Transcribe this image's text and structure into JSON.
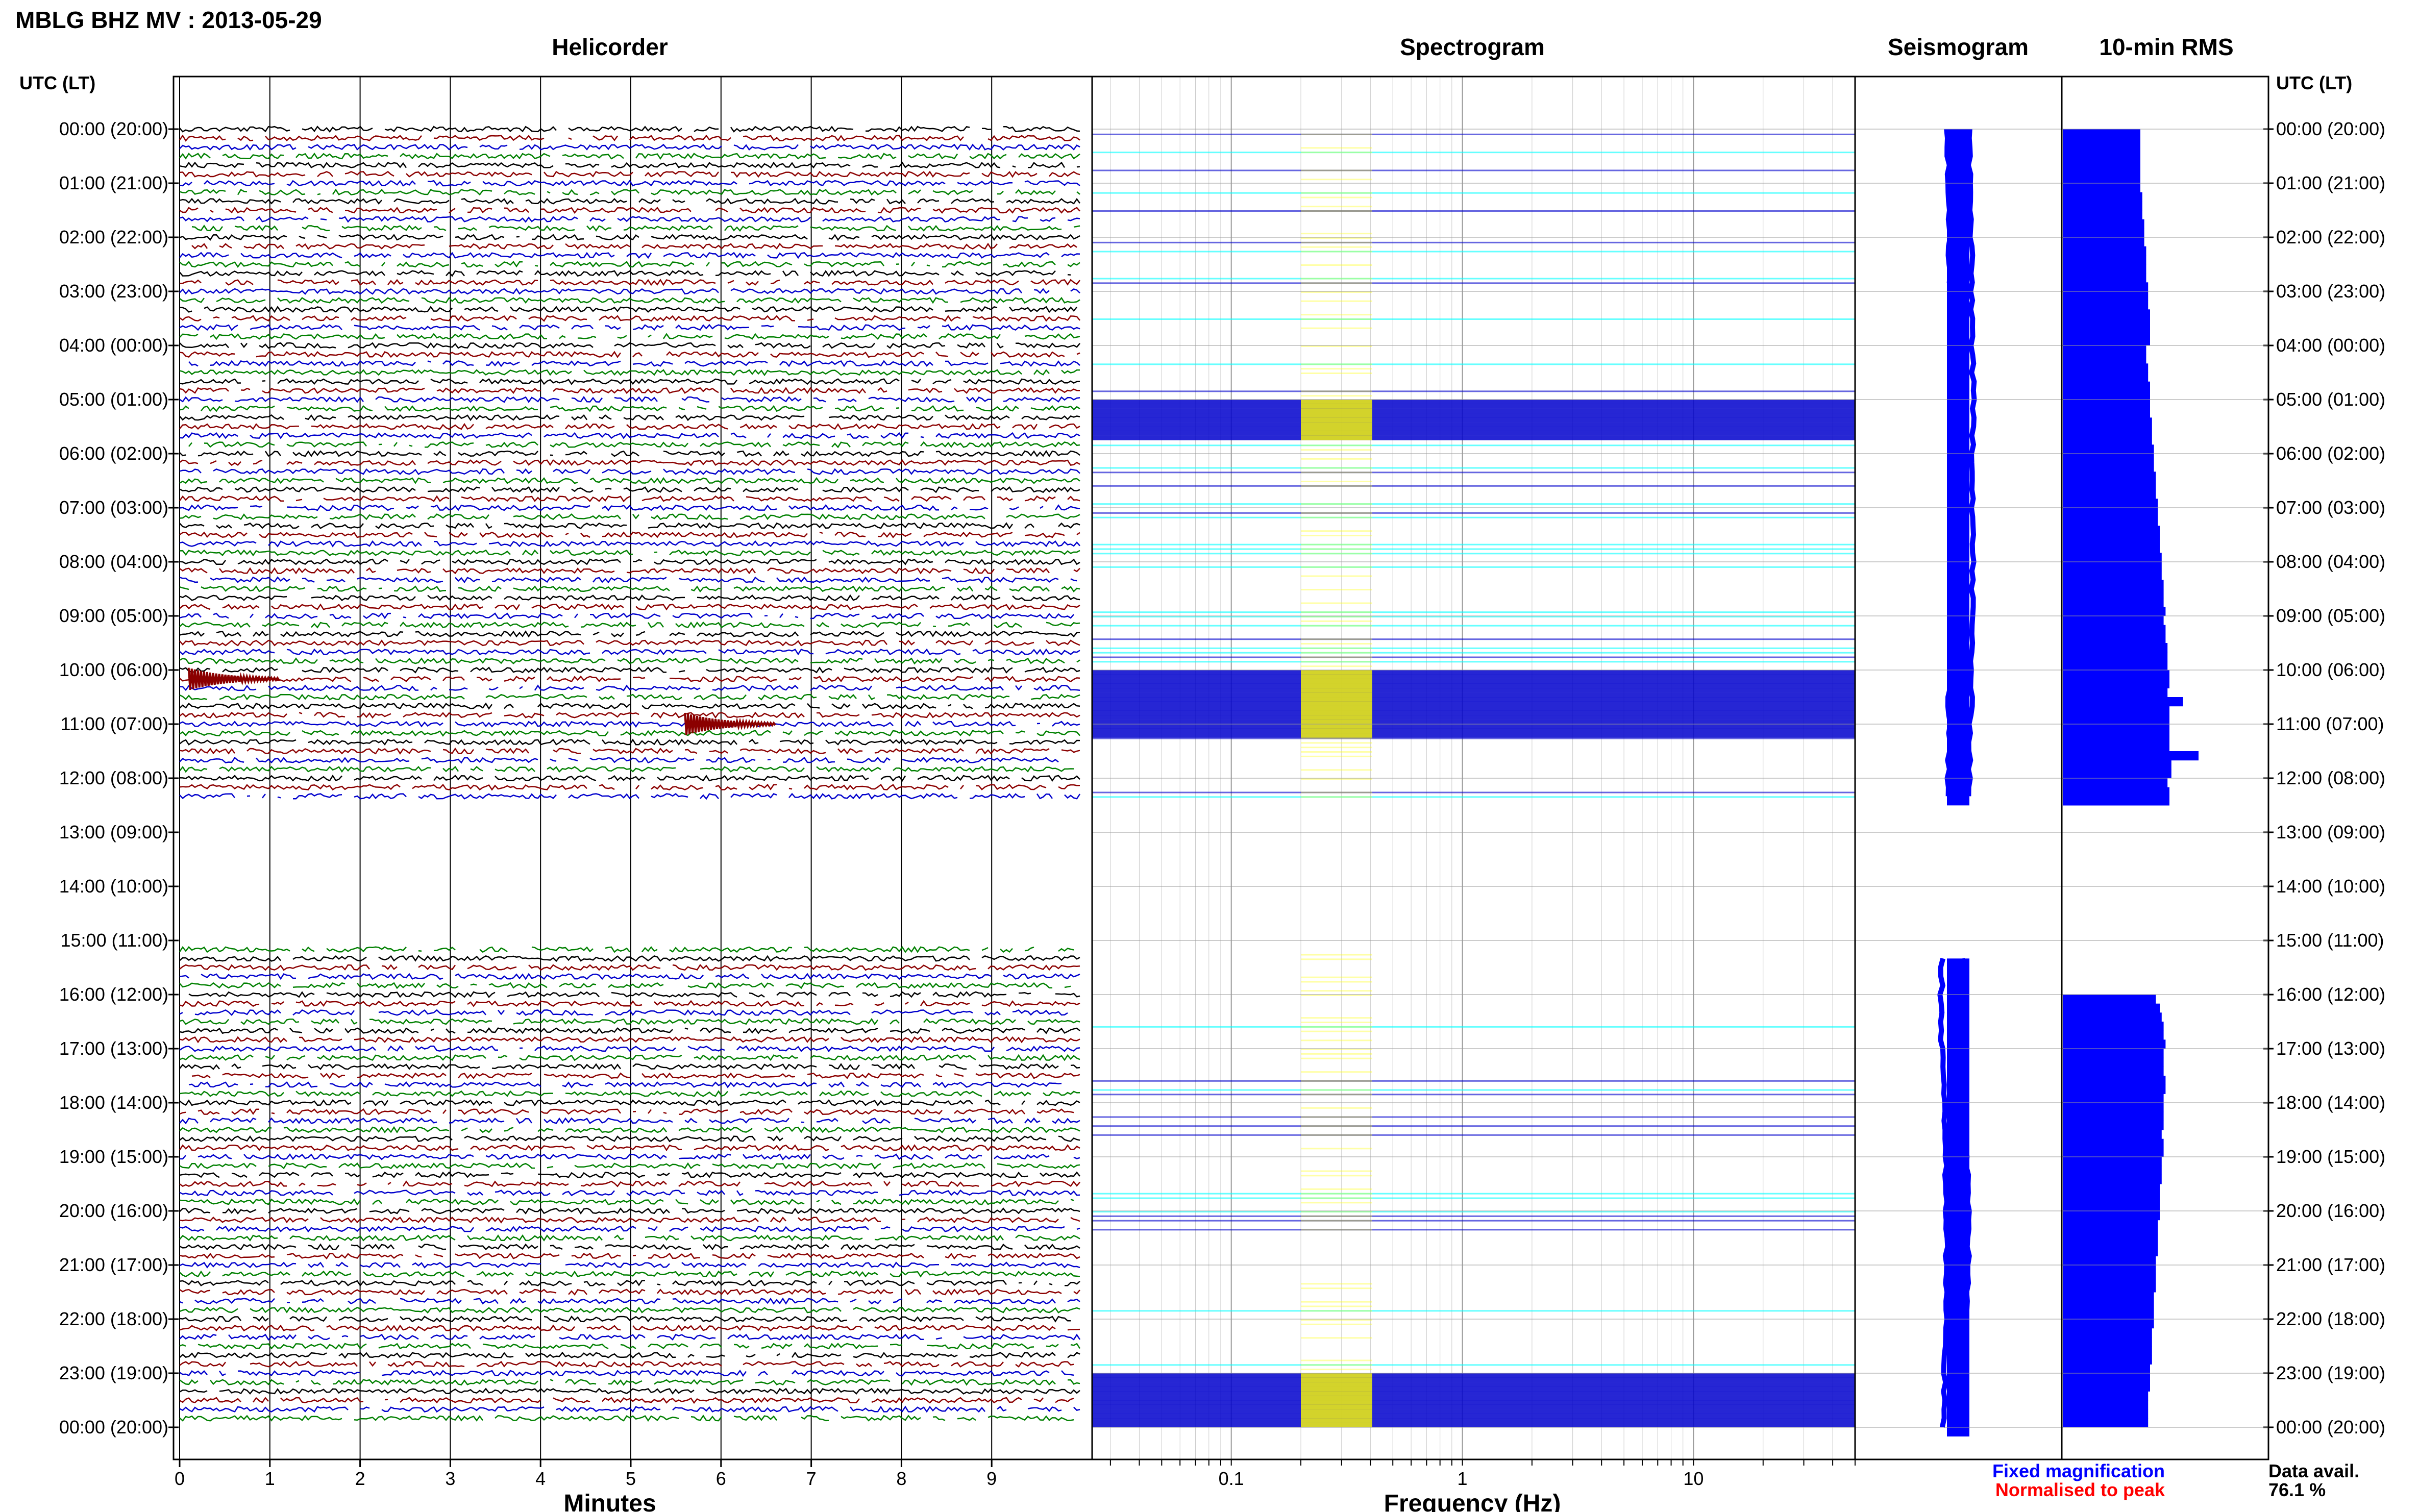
{
  "header": {
    "station_title": "MBLG BHZ MV : 2013-05-29",
    "utc_lt_label": "UTC (LT)"
  },
  "panels": {
    "helicorder": "Helicorder",
    "spectrogram": "Spectrogram",
    "seismogram": "Seismogram",
    "rms": "10-min RMS"
  },
  "time_axis": {
    "labels": [
      "00:00 (20:00)",
      "01:00 (21:00)",
      "02:00 (22:00)",
      "03:00 (23:00)",
      "04:00 (00:00)",
      "05:00 (01:00)",
      "06:00 (02:00)",
      "07:00 (03:00)",
      "08:00 (04:00)",
      "09:00 (05:00)",
      "10:00 (06:00)",
      "11:00 (07:00)",
      "12:00 (08:00)",
      "13:00 (09:00)",
      "14:00 (10:00)",
      "15:00 (11:00)",
      "16:00 (12:00)",
      "17:00 (13:00)",
      "18:00 (14:00)",
      "19:00 (15:00)",
      "20:00 (16:00)",
      "21:00 (17:00)",
      "22:00 (18:00)",
      "23:00 (19:00)",
      "00:00 (20:00)"
    ]
  },
  "footer": {
    "minutes_label": "Minutes",
    "frequency_label": "Frequency (Hz)",
    "fixed_magnification": "Fixed magnification",
    "normalised_to_peak": "Normalised to peak",
    "data_avail_label": "Data avail.",
    "data_avail_value": "76.1 %"
  },
  "colors": {
    "trace_black": "#000000",
    "trace_red": "#8b0000",
    "trace_blue": "#0000cc",
    "trace_green": "#008000",
    "seismogram": "#0000ff",
    "rms": "#0000ff",
    "fixed_magnification": "#0000ff",
    "normalised_to_peak": "#ff0000",
    "spectrogram_band": "#0000cc",
    "spectrogram_low": "#00ffff",
    "spectrogram_peak": "#ffff00"
  },
  "chart_data": [
    {
      "type": "line",
      "panel": "Helicorder",
      "xlabel": "Minutes",
      "xticks": [
        "0",
        "1",
        "2",
        "3",
        "4",
        "5",
        "6",
        "7",
        "8",
        "9"
      ],
      "xlim": [
        0,
        10
      ],
      "trace_interval_min": 10,
      "trace_colors_cycle": [
        "black",
        "red",
        "blue",
        "green"
      ],
      "data_gap_utc": [
        "12:30",
        "15:10"
      ],
      "events": [
        {
          "time_utc": "10:10",
          "minute": 0.1
        },
        {
          "time_utc": "11:00",
          "minute": 5.6
        }
      ]
    },
    {
      "type": "heatmap",
      "panel": "Spectrogram",
      "xlabel": "Frequency (Hz)",
      "xscale": "log",
      "xlim": [
        0.025,
        50
      ],
      "xticks": [
        "0.1",
        "1",
        "10"
      ],
      "xtick_values": [
        0.1,
        1,
        10
      ],
      "data_gap_utc": [
        "12:30",
        "15:10"
      ],
      "high_energy_utc": [
        "05:00",
        "05:45",
        "10:00",
        "11:15",
        "23:00",
        "23:59"
      ]
    },
    {
      "type": "line",
      "panel": "Seismogram",
      "data_gap_utc": [
        "12:30",
        "15:20"
      ]
    },
    {
      "type": "bar",
      "panel": "10-min RMS",
      "orientation": "horizontal",
      "units": "relative",
      "values": [
        0.4,
        0.4,
        0.4,
        0.4,
        0.4,
        0.4,
        0.4,
        0.41,
        0.41,
        0.41,
        0.42,
        0.42,
        0.42,
        0.43,
        0.43,
        0.43,
        0.43,
        0.44,
        0.44,
        0.44,
        0.45,
        0.45,
        0.45,
        0.45,
        0.43,
        0.43,
        0.44,
        0.44,
        0.45,
        0.45,
        0.45,
        0.45,
        0.46,
        0.46,
        0.46,
        0.47,
        0.47,
        0.47,
        0.48,
        0.48,
        0.48,
        0.49,
        0.49,
        0.49,
        0.5,
        0.5,
        0.5,
        0.51,
        0.51,
        0.51,
        0.52,
        0.52,
        0.52,
        0.53,
        0.52,
        0.53,
        0.53,
        0.54,
        0.54,
        0.54,
        0.55,
        0.55,
        0.54,
        0.62,
        0.55,
        0.55,
        0.55,
        0.55,
        0.55,
        0.7,
        0.56,
        0.56,
        0.54,
        0.55,
        0.55,
        null,
        null,
        null,
        null,
        null,
        null,
        null,
        null,
        null,
        null,
        null,
        null,
        null,
        null,
        null,
        null,
        null,
        null,
        null,
        null,
        null,
        0.48,
        0.5,
        0.51,
        0.52,
        0.52,
        0.53,
        0.52,
        0.52,
        0.52,
        0.53,
        0.53,
        0.52,
        0.52,
        0.52,
        0.52,
        0.51,
        0.52,
        0.52,
        0.51,
        0.51,
        0.51,
        0.5,
        0.5,
        0.5,
        0.5,
        0.49,
        0.49,
        0.49,
        0.49,
        0.48,
        0.48,
        0.48,
        0.48,
        0.47,
        0.47,
        0.47,
        0.47,
        0.46,
        0.46,
        0.46,
        0.46,
        0.45,
        0.45,
        0.45,
        0.44,
        0.44,
        0.44,
        0.44
      ]
    }
  ]
}
